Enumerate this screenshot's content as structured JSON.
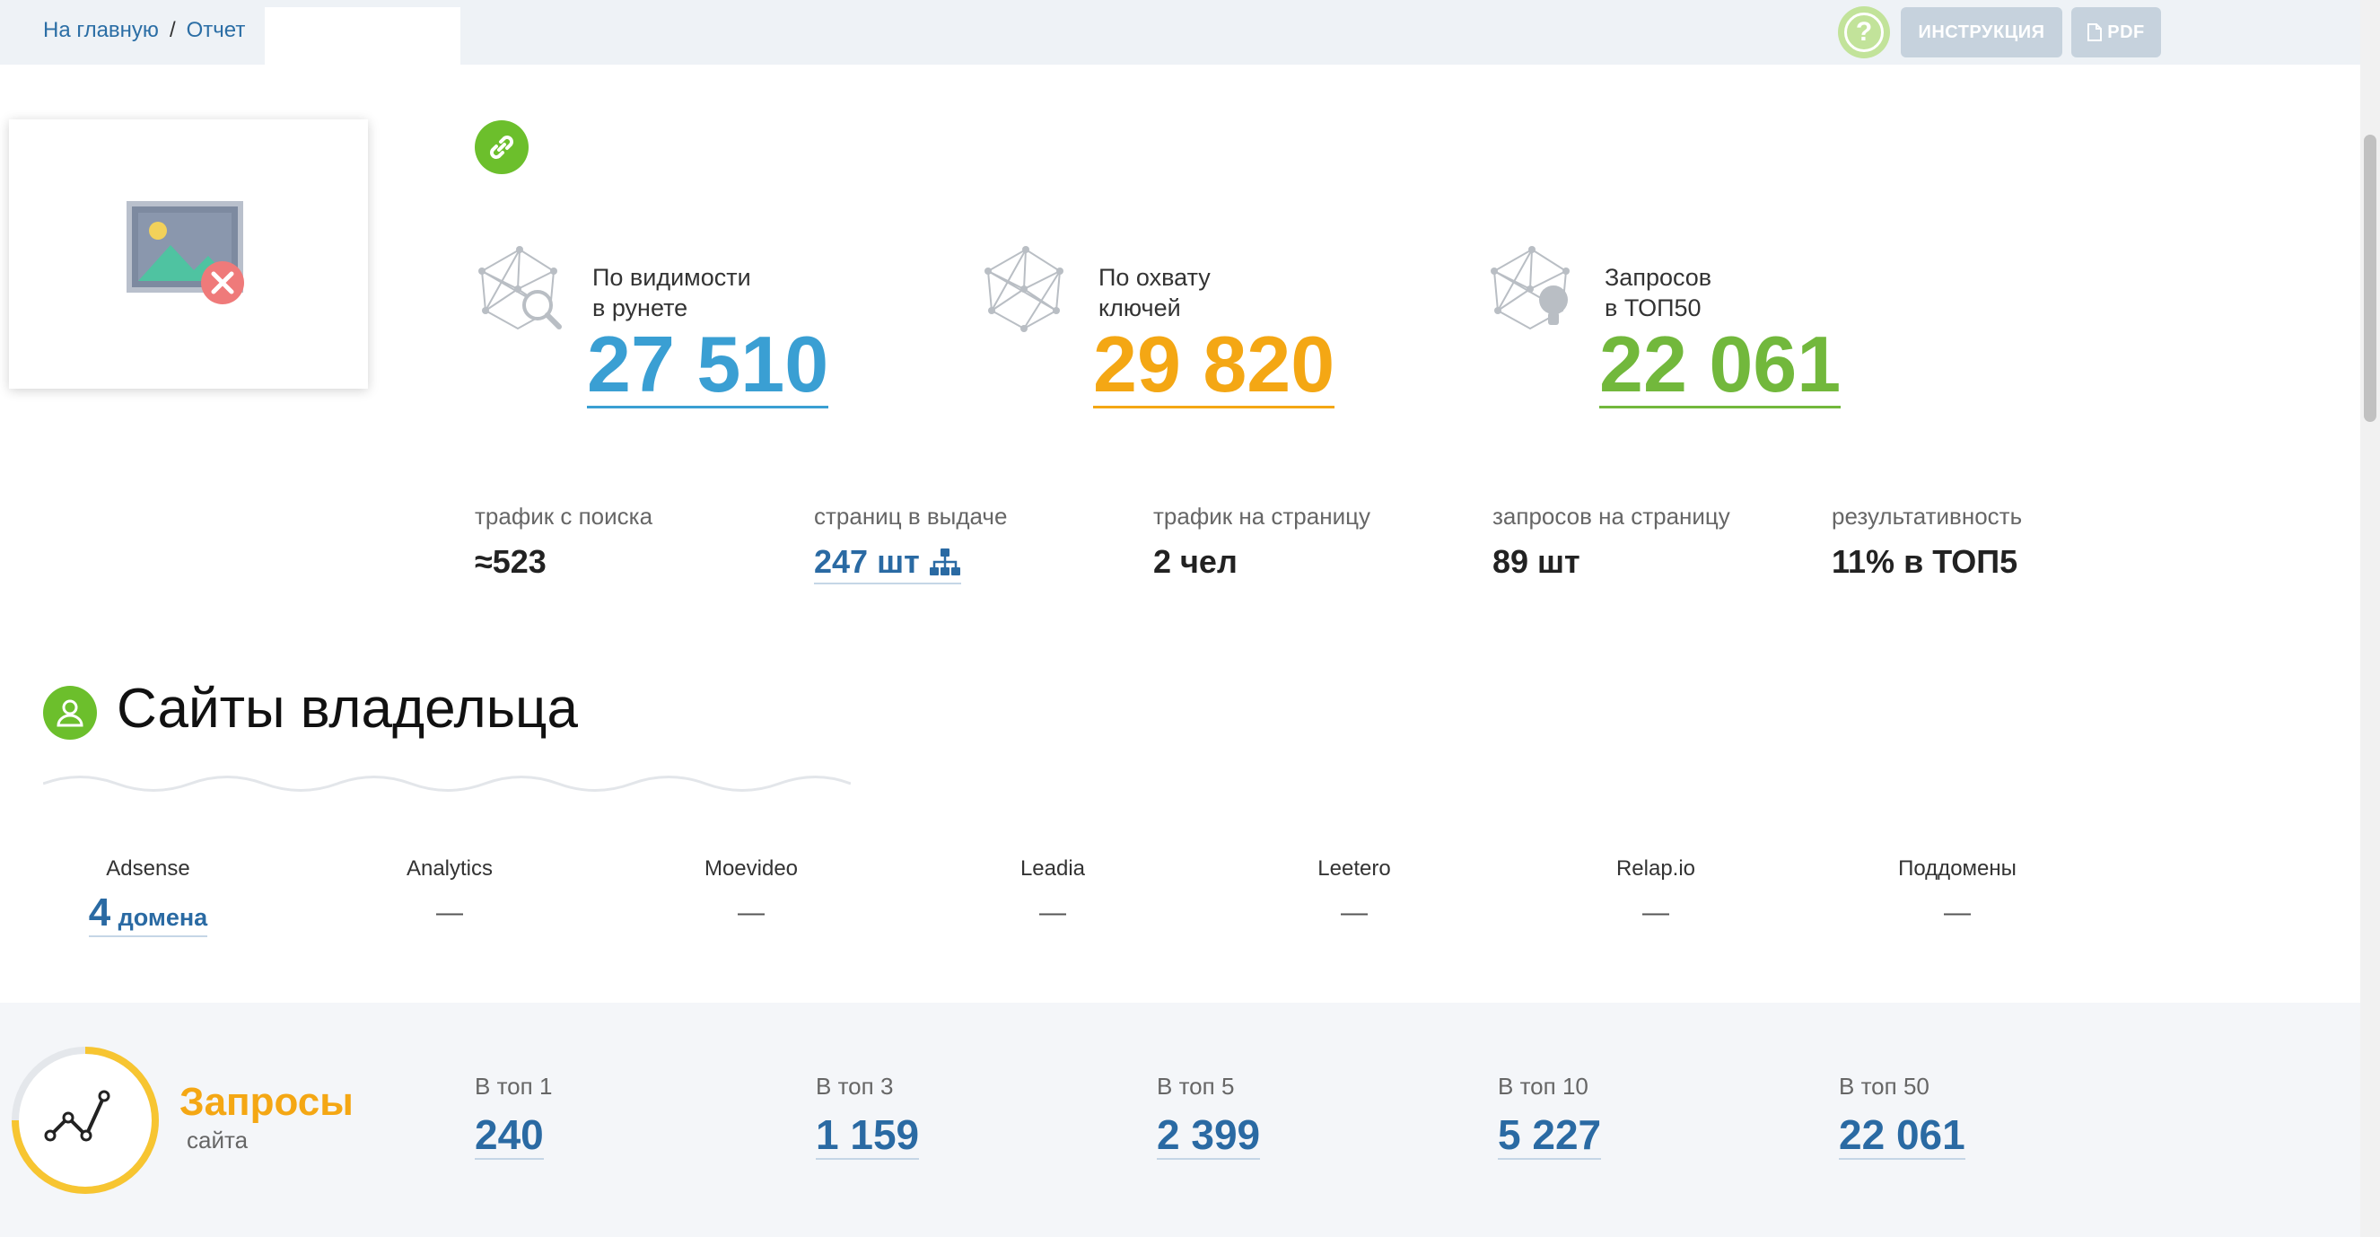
{
  "breadcrumb": {
    "home": "На главную",
    "separator": "/",
    "current": "Отчет"
  },
  "header": {
    "instructions_label": "ИНСТРУКЦИЯ",
    "pdf_label": "PDF",
    "help_glyph": "?"
  },
  "big_stats": [
    {
      "label_line1": "По видимости",
      "label_line2": "в рунете",
      "value": "27 510",
      "color": "#3a9fd3",
      "icon": "network-search-icon"
    },
    {
      "label_line1": "По охвату",
      "label_line2": "ключей",
      "value": "29 820",
      "color": "#f4a714",
      "icon": "network-icon"
    },
    {
      "label_line1": "Запросов",
      "label_line2": "в ТОП50",
      "value": "22 061",
      "color": "#72b83c",
      "icon": "network-bulb-icon"
    }
  ],
  "metrics": [
    {
      "label": "трафик с поиска",
      "value": "≈523"
    },
    {
      "label": "страниц в выдаче",
      "value": "247 шт"
    },
    {
      "label": "трафик на страницу",
      "value": "2 чел"
    },
    {
      "label": "запросов на страницу",
      "value": "89 шт"
    },
    {
      "label": "результативность",
      "value": "11% в ТОП5"
    }
  ],
  "owner_sites": {
    "title": "Сайты владельца",
    "services": [
      {
        "label": "Adsense",
        "count": "4",
        "unit": "домена"
      },
      {
        "label": "Analytics",
        "value": "—"
      },
      {
        "label": "Moevideo",
        "value": "—"
      },
      {
        "label": "Leadia",
        "value": "—"
      },
      {
        "label": "Leetero",
        "value": "—"
      },
      {
        "label": "Relap.io",
        "value": "—"
      },
      {
        "label": "Поддомены",
        "value": "—"
      }
    ]
  },
  "queries": {
    "title": "Запросы",
    "subtitle": "сайта",
    "tops": [
      {
        "label": "В топ 1",
        "value": "240"
      },
      {
        "label": "В топ 3",
        "value": "1 159"
      },
      {
        "label": "В топ 5",
        "value": "2 399"
      },
      {
        "label": "В топ 10",
        "value": "5 227"
      },
      {
        "label": "В топ 50",
        "value": "22 061"
      }
    ]
  },
  "colors": {
    "accent_blue": "#2a6aa3",
    "visibility_blue": "#3a9fd3",
    "orange": "#f4a714",
    "green": "#72b83c"
  }
}
